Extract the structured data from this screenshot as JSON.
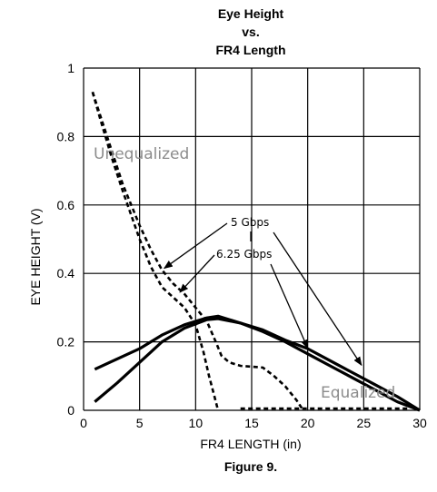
{
  "chart_data": {
    "type": "line",
    "title": [
      "Eye Height",
      "vs.",
      "FR4 Length"
    ],
    "xlabel": "FR4 LENGTH (in)",
    "ylabel": "EYE HEIGHT (V)",
    "caption": "Figure 9.",
    "xlim": [
      0,
      30
    ],
    "ylim": [
      0,
      1
    ],
    "x_ticks": [
      0,
      5,
      10,
      15,
      20,
      25,
      30
    ],
    "y_ticks": [
      0,
      0.2,
      0.4,
      0.6,
      0.8,
      1
    ],
    "y_tick_labels": [
      "0",
      "0.2",
      "0.4",
      "0.6",
      "0.8",
      "1"
    ],
    "grid": true,
    "series": [
      {
        "style": "dashed",
        "points": [
          [
            0.8,
            0.93
          ],
          [
            1.5,
            0.86
          ],
          [
            2.5,
            0.76
          ],
          [
            3.5,
            0.66
          ],
          [
            5,
            0.54
          ],
          [
            6,
            0.47
          ],
          [
            7,
            0.41
          ],
          [
            8,
            0.37
          ],
          [
            9,
            0.34
          ],
          [
            10,
            0.3
          ],
          [
            11,
            0.26
          ],
          [
            11.8,
            0.2
          ],
          [
            12.3,
            0.16
          ],
          [
            13,
            0.14
          ],
          [
            14,
            0.13
          ],
          [
            16,
            0.125
          ],
          [
            17,
            0.1
          ],
          [
            18,
            0.07
          ],
          [
            19,
            0.03
          ],
          [
            19.6,
            0.0
          ]
        ]
      },
      {
        "style": "dashed",
        "points": [
          [
            0.8,
            0.93
          ],
          [
            1.5,
            0.85
          ],
          [
            2.5,
            0.74
          ],
          [
            3.5,
            0.64
          ],
          [
            5,
            0.5
          ],
          [
            6,
            0.42
          ],
          [
            7,
            0.36
          ],
          [
            8,
            0.33
          ],
          [
            9,
            0.3
          ],
          [
            10,
            0.25
          ],
          [
            10.7,
            0.17
          ],
          [
            11.2,
            0.1
          ],
          [
            11.6,
            0.05
          ],
          [
            12,
            0.0
          ]
        ]
      },
      {
        "style": "dashed",
        "points": [
          [
            14,
            0.005
          ],
          [
            29,
            0.005
          ]
        ]
      },
      {
        "style": "solid",
        "points": [
          [
            1,
            0.12
          ],
          [
            3,
            0.15
          ],
          [
            5,
            0.18
          ],
          [
            7,
            0.22
          ],
          [
            9,
            0.25
          ],
          [
            11,
            0.27
          ],
          [
            12,
            0.275
          ],
          [
            14,
            0.255
          ],
          [
            16,
            0.23
          ],
          [
            18,
            0.2
          ],
          [
            20,
            0.165
          ],
          [
            22,
            0.13
          ],
          [
            24,
            0.095
          ],
          [
            26,
            0.06
          ],
          [
            28,
            0.025
          ],
          [
            30,
            0.0
          ]
        ]
      },
      {
        "style": "solid",
        "points": [
          [
            1,
            0.025
          ],
          [
            3,
            0.08
          ],
          [
            5,
            0.14
          ],
          [
            7,
            0.2
          ],
          [
            9,
            0.24
          ],
          [
            11,
            0.265
          ],
          [
            12,
            0.268
          ],
          [
            14,
            0.255
          ],
          [
            16,
            0.235
          ],
          [
            18,
            0.205
          ],
          [
            20,
            0.18
          ],
          [
            22,
            0.145
          ],
          [
            24,
            0.11
          ],
          [
            26,
            0.075
          ],
          [
            28,
            0.04
          ],
          [
            30,
            0.0
          ]
        ]
      }
    ],
    "annotations": {
      "unequalized": "Unequalized",
      "equalized": "Equalized",
      "rate_5": "5 Gbps",
      "rate_625": "6.25 Gbps"
    }
  }
}
